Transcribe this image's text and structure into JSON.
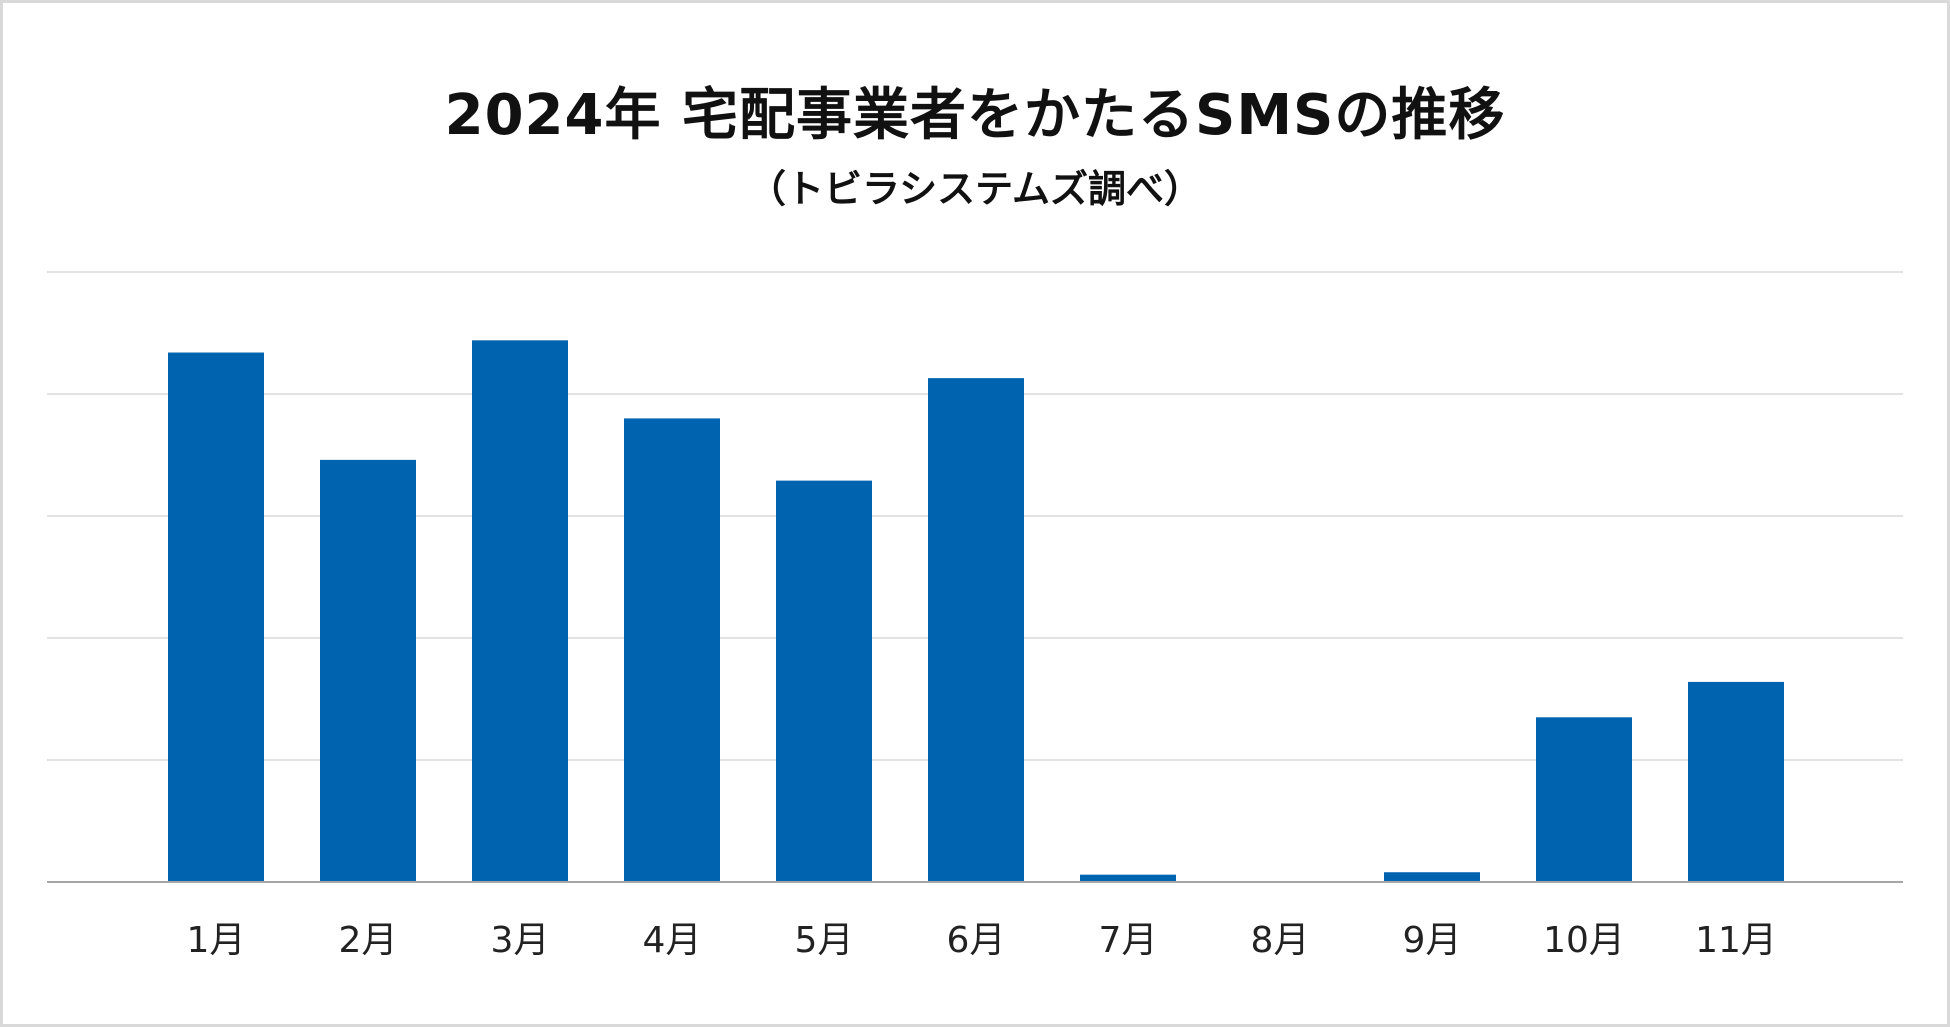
{
  "chart_data": {
    "type": "bar",
    "title": "2024年 宅配事業者をかたるSMSの推移",
    "subtitle": "（トビラシステムズ調べ）",
    "categories": [
      "1月",
      "2月",
      "3月",
      "4月",
      "5月",
      "6月",
      "7月",
      "8月",
      "9月",
      "10月",
      "11月"
    ],
    "values": [
      4.34,
      3.46,
      4.44,
      3.8,
      3.29,
      4.13,
      0.06,
      0,
      0.08,
      1.35,
      1.64
    ],
    "ylim": [
      0,
      5
    ],
    "gridlines": 5,
    "grid": true,
    "y_tick_labels_shown": false,
    "legend": false,
    "colors": {
      "bar": "#0063af",
      "grid": "#e3e3e3",
      "axis": "#a6a6a6"
    }
  }
}
